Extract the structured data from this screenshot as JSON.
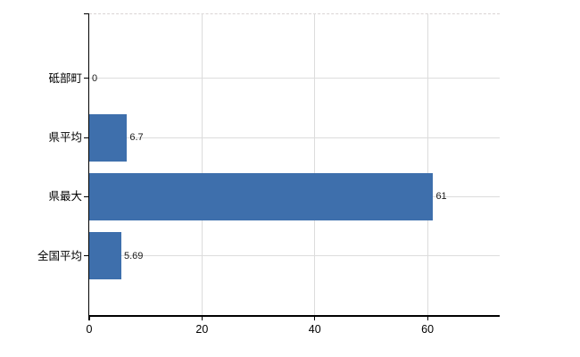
{
  "chart_data": {
    "type": "bar",
    "orientation": "horizontal",
    "title": "",
    "categories": [
      "砥部町",
      "県平均",
      "県最大",
      "全国平均"
    ],
    "values": [
      0,
      6.7,
      61,
      5.69
    ],
    "value_labels": [
      "0",
      "6.7",
      "61",
      "5.69"
    ],
    "x_ticks": [
      0,
      20,
      40,
      60
    ],
    "x_tick_labels": [
      "0",
      "20",
      "40",
      "60"
    ],
    "xlim": [
      0,
      72.8
    ],
    "grid": true,
    "legend": false,
    "bar_color": "#3e6fac",
    "grid_color": "#dcdcdc",
    "axis_color": "#000000",
    "background_color": "#ffffff"
  }
}
